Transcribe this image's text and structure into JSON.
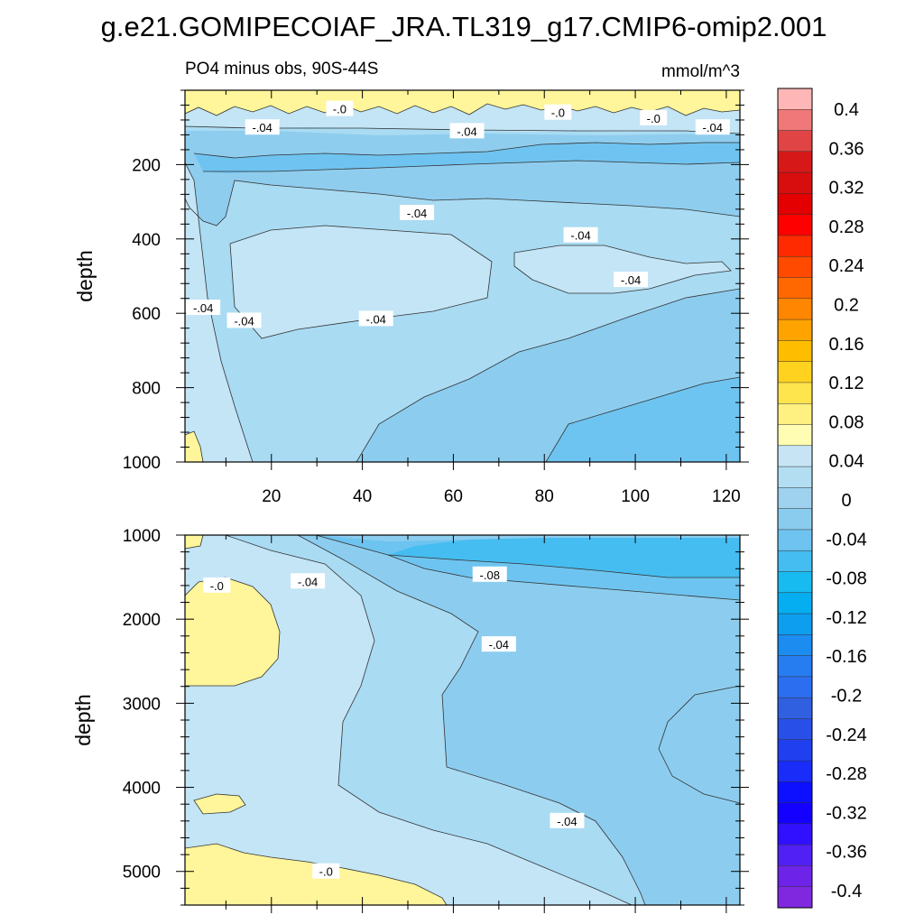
{
  "chart_data": {
    "type": "heatmap",
    "title": "g.e21.GOMIPECOIAF_JRA.TL319_g17.CMIP6-omip2.001",
    "panels": [
      {
        "left_label": "PO4 minus obs, 90S-44S",
        "right_label": "mmol/m^3",
        "ylabel": "depth",
        "xlim": [
          1,
          123
        ],
        "ylim": [
          0,
          1000
        ],
        "y_inverted": true,
        "x_ticks": [
          20,
          40,
          60,
          80,
          100,
          120
        ],
        "x_tick_labels": [
          "20",
          "40",
          "60",
          "80",
          "100",
          "120"
        ],
        "y_ticks": [
          200,
          400,
          600,
          800,
          1000
        ],
        "y_tick_labels": [
          "200",
          "400",
          "600",
          "800",
          "1000"
        ],
        "contour_labels": [
          {
            "text": "-.0",
            "x": 35,
            "y": 50
          },
          {
            "text": "-.04",
            "x": 18,
            "y": 100
          },
          {
            "text": "-.04",
            "x": 63,
            "y": 110
          },
          {
            "text": "-.0",
            "x": 83,
            "y": 60
          },
          {
            "text": "-.0",
            "x": 104,
            "y": 75
          },
          {
            "text": "-.04",
            "x": 117,
            "y": 100
          },
          {
            "text": "-.04",
            "x": 52,
            "y": 330
          },
          {
            "text": "-.04",
            "x": 88,
            "y": 390
          },
          {
            "text": "-.04",
            "x": 99,
            "y": 510
          },
          {
            "text": "-.04",
            "x": 5,
            "y": 585
          },
          {
            "text": "-.04",
            "x": 14,
            "y": 620
          },
          {
            "text": "-.04",
            "x": 43,
            "y": 615
          }
        ]
      },
      {
        "ylabel": "depth",
        "xlim": [
          1,
          123
        ],
        "ylim": [
          1000,
          5400
        ],
        "y_inverted": true,
        "y_ticks": [
          1000,
          2000,
          3000,
          4000,
          5000
        ],
        "y_tick_labels": [
          "1000",
          "2000",
          "3000",
          "4000",
          "5000"
        ],
        "contour_labels": [
          {
            "text": "-.0",
            "x": 8,
            "y": 1600
          },
          {
            "text": "-.04",
            "x": 28,
            "y": 1550
          },
          {
            "text": "-.08",
            "x": 68,
            "y": 1470
          },
          {
            "text": "-.04",
            "x": 70,
            "y": 2300
          },
          {
            "text": "-.04",
            "x": 85,
            "y": 4400
          },
          {
            "text": "-.0",
            "x": 32,
            "y": 5000
          }
        ]
      }
    ],
    "colorbar": {
      "labels": [
        "0.4",
        "0.36",
        "0.32",
        "0.28",
        "0.24",
        "0.2",
        "0.16",
        "0.12",
        "0.08",
        "0.04",
        "0",
        "-0.04",
        "-0.08",
        "-0.12",
        "-0.16",
        "-0.2",
        "-0.24",
        "-0.28",
        "-0.32",
        "-0.36",
        "-0.4"
      ],
      "colors": [
        "#ffb6b6",
        "#f07878",
        "#e04444",
        "#d61818",
        "#d80e0e",
        "#e40000",
        "#ff0000",
        "#ff2a00",
        "#ff4a00",
        "#ff6800",
        "#ff8600",
        "#ffa300",
        "#ffbd00",
        "#ffd21f",
        "#ffe54d",
        "#fff082",
        "#fffcb3",
        "#c6e4f4",
        "#b3def2",
        "#9ed2ee",
        "#8accee",
        "#6fc3f0",
        "#45bdf0",
        "#17bbf0",
        "#05aef0",
        "#0e9ef0",
        "#1c8cf0",
        "#267df0",
        "#2c6ef0",
        "#3060e0",
        "#2850e8",
        "#2040f0",
        "#1a2cf8",
        "#0c10ff",
        "#1400ff",
        "#3010ff",
        "#5020f4",
        "#6e24e8",
        "#8028e0"
      ]
    }
  }
}
